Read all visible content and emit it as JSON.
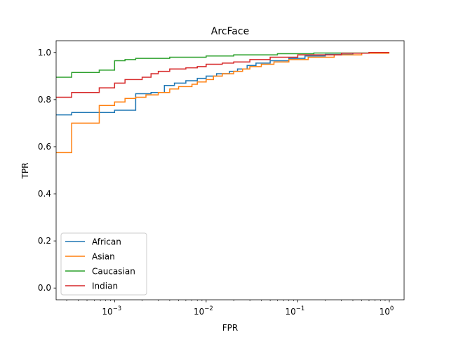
{
  "chart_data": {
    "type": "line",
    "title": "ArcFace",
    "xlabel": "FPR",
    "ylabel": "TPR",
    "xscale": "log",
    "xlim": [
      0.00023,
      1.45
    ],
    "ylim": [
      -0.05,
      1.05
    ],
    "grid": false,
    "legend": "lower-left",
    "x_ticks": [
      {
        "value": 0.001,
        "label": "10",
        "exp": "−3"
      },
      {
        "value": 0.01,
        "label": "10",
        "exp": "−2"
      },
      {
        "value": 0.1,
        "label": "10",
        "exp": "−1"
      },
      {
        "value": 1,
        "label": "10",
        "exp": "0"
      }
    ],
    "y_ticks": [
      "0.0",
      "0.2",
      "0.4",
      "0.6",
      "0.8",
      "1.0"
    ],
    "series": [
      {
        "name": "African",
        "color": "#1f77b4",
        "points": [
          [
            0.00023,
            0.735
          ],
          [
            0.00034,
            0.735
          ],
          [
            0.00034,
            0.745
          ],
          [
            0.001,
            0.745
          ],
          [
            0.001,
            0.755
          ],
          [
            0.0017,
            0.755
          ],
          [
            0.0017,
            0.825
          ],
          [
            0.0025,
            0.825
          ],
          [
            0.0025,
            0.83
          ],
          [
            0.0035,
            0.83
          ],
          [
            0.0035,
            0.86
          ],
          [
            0.0045,
            0.86
          ],
          [
            0.0045,
            0.87
          ],
          [
            0.006,
            0.87
          ],
          [
            0.006,
            0.88
          ],
          [
            0.008,
            0.88
          ],
          [
            0.008,
            0.89
          ],
          [
            0.01,
            0.89
          ],
          [
            0.01,
            0.9
          ],
          [
            0.013,
            0.9
          ],
          [
            0.013,
            0.91
          ],
          [
            0.018,
            0.91
          ],
          [
            0.018,
            0.92
          ],
          [
            0.022,
            0.92
          ],
          [
            0.022,
            0.93
          ],
          [
            0.028,
            0.93
          ],
          [
            0.028,
            0.945
          ],
          [
            0.035,
            0.945
          ],
          [
            0.035,
            0.955
          ],
          [
            0.05,
            0.955
          ],
          [
            0.05,
            0.965
          ],
          [
            0.08,
            0.965
          ],
          [
            0.08,
            0.975
          ],
          [
            0.12,
            0.975
          ],
          [
            0.12,
            0.985
          ],
          [
            0.2,
            0.985
          ],
          [
            0.2,
            0.992
          ],
          [
            0.4,
            0.992
          ],
          [
            0.4,
            0.997
          ],
          [
            0.7,
            0.997
          ],
          [
            0.7,
            1.0
          ],
          [
            1.0,
            1.0
          ]
        ]
      },
      {
        "name": "Asian",
        "color": "#ff7f0e",
        "points": [
          [
            0.00023,
            0.575
          ],
          [
            0.00034,
            0.575
          ],
          [
            0.00034,
            0.7
          ],
          [
            0.00068,
            0.7
          ],
          [
            0.00068,
            0.775
          ],
          [
            0.001,
            0.775
          ],
          [
            0.001,
            0.79
          ],
          [
            0.0013,
            0.79
          ],
          [
            0.0013,
            0.805
          ],
          [
            0.0017,
            0.805
          ],
          [
            0.0017,
            0.81
          ],
          [
            0.0022,
            0.81
          ],
          [
            0.0022,
            0.82
          ],
          [
            0.003,
            0.82
          ],
          [
            0.003,
            0.83
          ],
          [
            0.004,
            0.83
          ],
          [
            0.004,
            0.845
          ],
          [
            0.005,
            0.845
          ],
          [
            0.005,
            0.855
          ],
          [
            0.007,
            0.855
          ],
          [
            0.007,
            0.865
          ],
          [
            0.008,
            0.865
          ],
          [
            0.008,
            0.875
          ],
          [
            0.01,
            0.875
          ],
          [
            0.01,
            0.885
          ],
          [
            0.012,
            0.885
          ],
          [
            0.012,
            0.9
          ],
          [
            0.015,
            0.9
          ],
          [
            0.015,
            0.91
          ],
          [
            0.02,
            0.91
          ],
          [
            0.02,
            0.92
          ],
          [
            0.025,
            0.92
          ],
          [
            0.025,
            0.93
          ],
          [
            0.03,
            0.93
          ],
          [
            0.03,
            0.94
          ],
          [
            0.04,
            0.94
          ],
          [
            0.04,
            0.95
          ],
          [
            0.055,
            0.95
          ],
          [
            0.055,
            0.96
          ],
          [
            0.08,
            0.96
          ],
          [
            0.08,
            0.97
          ],
          [
            0.13,
            0.97
          ],
          [
            0.13,
            0.98
          ],
          [
            0.25,
            0.98
          ],
          [
            0.25,
            0.99
          ],
          [
            0.5,
            0.99
          ],
          [
            0.5,
            0.997
          ],
          [
            1.0,
            0.997
          ]
        ]
      },
      {
        "name": "Caucasian",
        "color": "#2ca02c",
        "points": [
          [
            0.00023,
            0.895
          ],
          [
            0.00034,
            0.895
          ],
          [
            0.00034,
            0.915
          ],
          [
            0.00068,
            0.915
          ],
          [
            0.00068,
            0.925
          ],
          [
            0.001,
            0.925
          ],
          [
            0.001,
            0.965
          ],
          [
            0.0013,
            0.965
          ],
          [
            0.0013,
            0.97
          ],
          [
            0.0017,
            0.97
          ],
          [
            0.0017,
            0.975
          ],
          [
            0.004,
            0.975
          ],
          [
            0.004,
            0.98
          ],
          [
            0.01,
            0.98
          ],
          [
            0.01,
            0.985
          ],
          [
            0.02,
            0.985
          ],
          [
            0.02,
            0.99
          ],
          [
            0.06,
            0.99
          ],
          [
            0.06,
            0.995
          ],
          [
            0.15,
            0.995
          ],
          [
            0.15,
            0.998
          ],
          [
            0.6,
            0.998
          ],
          [
            0.6,
            1.0
          ],
          [
            1.0,
            1.0
          ]
        ]
      },
      {
        "name": "Indian",
        "color": "#d62728",
        "points": [
          [
            0.00023,
            0.81
          ],
          [
            0.00034,
            0.81
          ],
          [
            0.00034,
            0.83
          ],
          [
            0.00068,
            0.83
          ],
          [
            0.00068,
            0.85
          ],
          [
            0.001,
            0.85
          ],
          [
            0.001,
            0.87
          ],
          [
            0.0013,
            0.87
          ],
          [
            0.0013,
            0.885
          ],
          [
            0.002,
            0.885
          ],
          [
            0.002,
            0.895
          ],
          [
            0.0025,
            0.895
          ],
          [
            0.0025,
            0.91
          ],
          [
            0.003,
            0.91
          ],
          [
            0.003,
            0.92
          ],
          [
            0.004,
            0.92
          ],
          [
            0.004,
            0.93
          ],
          [
            0.006,
            0.93
          ],
          [
            0.006,
            0.935
          ],
          [
            0.008,
            0.935
          ],
          [
            0.008,
            0.94
          ],
          [
            0.01,
            0.94
          ],
          [
            0.01,
            0.95
          ],
          [
            0.015,
            0.95
          ],
          [
            0.015,
            0.955
          ],
          [
            0.02,
            0.955
          ],
          [
            0.02,
            0.96
          ],
          [
            0.03,
            0.96
          ],
          [
            0.03,
            0.97
          ],
          [
            0.05,
            0.97
          ],
          [
            0.05,
            0.98
          ],
          [
            0.1,
            0.98
          ],
          [
            0.1,
            0.99
          ],
          [
            0.3,
            0.99
          ],
          [
            0.3,
            0.997
          ],
          [
            0.6,
            0.997
          ],
          [
            0.6,
            1.0
          ],
          [
            1.0,
            1.0
          ]
        ]
      }
    ]
  }
}
